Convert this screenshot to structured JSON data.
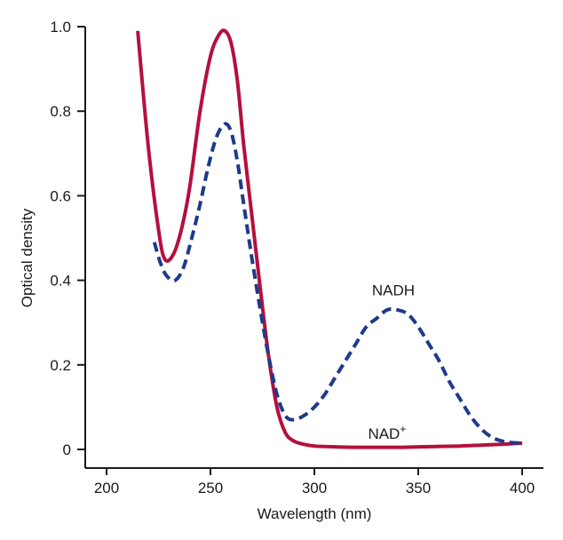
{
  "chart_data": {
    "type": "line",
    "title": "",
    "xlabel": "Wavelength (nm)",
    "ylabel": "Optical density",
    "xlim": [
      190,
      405
    ],
    "ylim": [
      -0.05,
      1.0
    ],
    "x_ticks": [
      200,
      250,
      300,
      350,
      400
    ],
    "y_ticks": [
      0,
      0.2,
      0.4,
      0.6,
      0.8,
      1.0
    ],
    "x_tick_labels": [
      "200",
      "250",
      "300",
      "350",
      "400"
    ],
    "y_tick_labels": [
      "0",
      "0.2",
      "0.4",
      "0.6",
      "0.8",
      "1.0"
    ],
    "grid": false,
    "series": [
      {
        "name": "NAD+",
        "color": "#b5103c",
        "style": "solid",
        "x": [
          215,
          220,
          225,
          228,
          232,
          236,
          240,
          245,
          250,
          254,
          257,
          260,
          263,
          266,
          270,
          274,
          278,
          282,
          286,
          290,
          295,
          300,
          310,
          320,
          330,
          340,
          350,
          360,
          370,
          380,
          390,
          400
        ],
        "y": [
          0.99,
          0.72,
          0.52,
          0.45,
          0.46,
          0.52,
          0.62,
          0.8,
          0.93,
          0.98,
          0.99,
          0.96,
          0.87,
          0.72,
          0.55,
          0.38,
          0.22,
          0.1,
          0.04,
          0.02,
          0.012,
          0.008,
          0.006,
          0.005,
          0.005,
          0.005,
          0.006,
          0.007,
          0.008,
          0.01,
          0.012,
          0.015
        ]
      },
      {
        "name": "NADH",
        "color": "#1f3a8a",
        "style": "dashed",
        "x": [
          223,
          226,
          229,
          233,
          237,
          241,
          245,
          249,
          253,
          257,
          260,
          263,
          266,
          270,
          274,
          278,
          282,
          286,
          290,
          295,
          300,
          305,
          310,
          315,
          320,
          325,
          330,
          335,
          340,
          345,
          350,
          355,
          360,
          365,
          370,
          375,
          380,
          385,
          390,
          395,
          400
        ],
        "y": [
          0.49,
          0.44,
          0.41,
          0.4,
          0.43,
          0.5,
          0.58,
          0.67,
          0.74,
          0.77,
          0.75,
          0.68,
          0.58,
          0.45,
          0.33,
          0.22,
          0.13,
          0.08,
          0.07,
          0.08,
          0.1,
          0.13,
          0.17,
          0.21,
          0.25,
          0.29,
          0.31,
          0.33,
          0.33,
          0.32,
          0.29,
          0.25,
          0.21,
          0.16,
          0.12,
          0.08,
          0.05,
          0.03,
          0.02,
          0.016,
          0.015
        ]
      }
    ],
    "annotations": [
      {
        "text": "NADH",
        "x": 338,
        "y": 0.365,
        "series": "NADH"
      },
      {
        "text": "NAD",
        "sup": "+",
        "x": 335,
        "y": 0.025,
        "series": "NAD+"
      }
    ]
  }
}
